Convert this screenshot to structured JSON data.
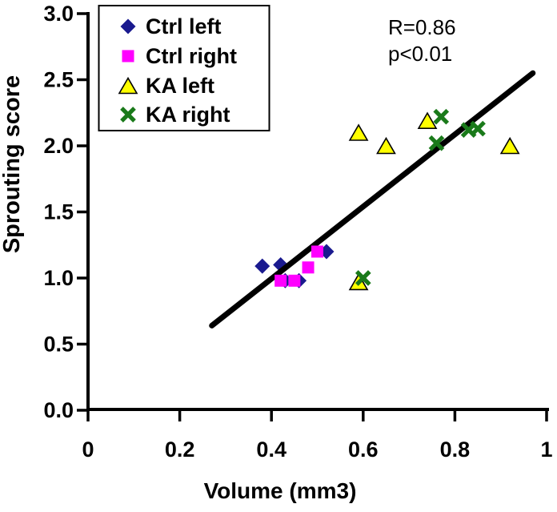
{
  "figure": {
    "kind": "scatter plot with trendline",
    "background": "#FFFFFF",
    "axis_color": "#000000"
  },
  "chart_data": {
    "type": "scatter",
    "title": "",
    "xlabel": "Volume (mm3)",
    "ylabel": "Sprouting score",
    "xlim": [
      0,
      1
    ],
    "ylim": [
      0.0,
      3.0
    ],
    "grid": false,
    "legend_position": "top-left-inside",
    "x_ticks": {
      "values": [
        0,
        0.2,
        0.4,
        0.6,
        0.8,
        1
      ],
      "labels": [
        "0",
        "0.2",
        "0.4",
        "0.6",
        "0.8",
        "1"
      ]
    },
    "y_ticks": {
      "values": [
        0,
        0.5,
        1,
        1.5,
        2,
        2.5,
        3
      ],
      "labels": [
        "0.0",
        "0.5",
        "1.0",
        "1.5",
        "2.0",
        "2.5",
        "3.0"
      ]
    },
    "series": [
      {
        "name": "Ctrl left",
        "marker": "diamond",
        "color": "#1A1A8F",
        "points": [
          [
            0.38,
            1.09
          ],
          [
            0.42,
            1.1
          ],
          [
            0.43,
            0.98
          ],
          [
            0.46,
            0.98
          ],
          [
            0.52,
            1.2
          ]
        ]
      },
      {
        "name": "Ctrl right",
        "marker": "square",
        "color": "#FF00FF",
        "points": [
          [
            0.42,
            0.98
          ],
          [
            0.45,
            0.98
          ],
          [
            0.48,
            1.08
          ],
          [
            0.5,
            1.2
          ]
        ]
      },
      {
        "name": "KA left",
        "marker": "triangle",
        "color": "#FFFF00",
        "outline": "#000000",
        "points": [
          [
            0.59,
            2.1
          ],
          [
            0.65,
            2.0
          ],
          [
            0.74,
            2.19
          ],
          [
            0.92,
            2.0
          ],
          [
            0.59,
            0.97
          ]
        ]
      },
      {
        "name": "KA right",
        "marker": "x",
        "color": "#1A7A1A",
        "points": [
          [
            0.77,
            2.22
          ],
          [
            0.76,
            2.02
          ],
          [
            0.83,
            2.12
          ],
          [
            0.85,
            2.13
          ],
          [
            0.6,
            1.0
          ]
        ]
      }
    ],
    "trendline": {
      "color": "#000000",
      "x": [
        0.27,
        0.97
      ],
      "y": [
        0.64,
        2.55
      ]
    },
    "annotations": [
      "R=0.86",
      "p<0.01"
    ]
  }
}
